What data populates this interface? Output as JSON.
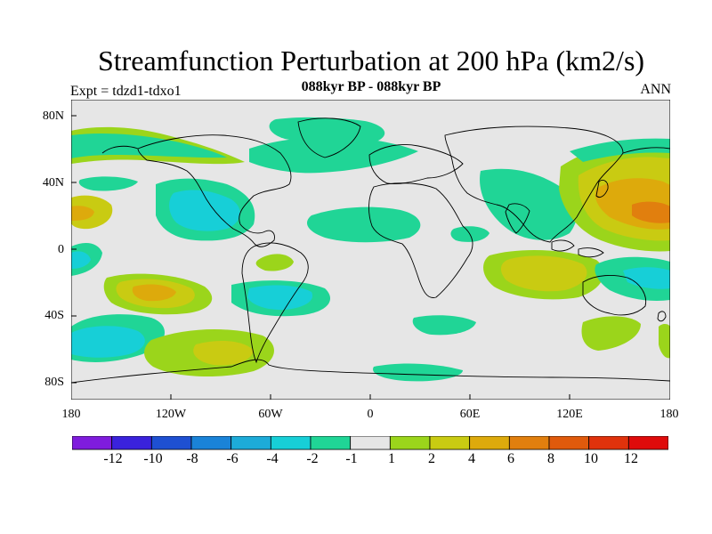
{
  "title": "Streamfunction Perturbation at 200 hPa (km2/s)",
  "subtitle": "088kyr BP - 088kyr BP",
  "left_label": "Expt = tdzd1-tdxo1",
  "right_label": "ANN",
  "lat_labels": [
    "80N",
    "40N",
    "0",
    "40S",
    "80S"
  ],
  "lon_labels": [
    "180",
    "120W",
    "60W",
    "0",
    "60E",
    "120E",
    "180"
  ],
  "colorbar": {
    "colors": [
      "#7f1cdd",
      "#3a22dc",
      "#1e50d2",
      "#1a83d8",
      "#1dabd8",
      "#17cfd7",
      "#20d596",
      "#e6e6e6",
      "#9bd51b",
      "#c9cb12",
      "#ddaa0c",
      "#e17f0e",
      "#e05a0c",
      "#e0320c",
      "#df0b0b"
    ],
    "labels": [
      "-12",
      "-10",
      "-8",
      "-6",
      "-4",
      "-2",
      "-1",
      "1",
      "2",
      "4",
      "6",
      "8",
      "10",
      "12"
    ]
  },
  "legend": {
    "background_color": "#e6e6e6",
    "land_color": "#000000"
  }
}
